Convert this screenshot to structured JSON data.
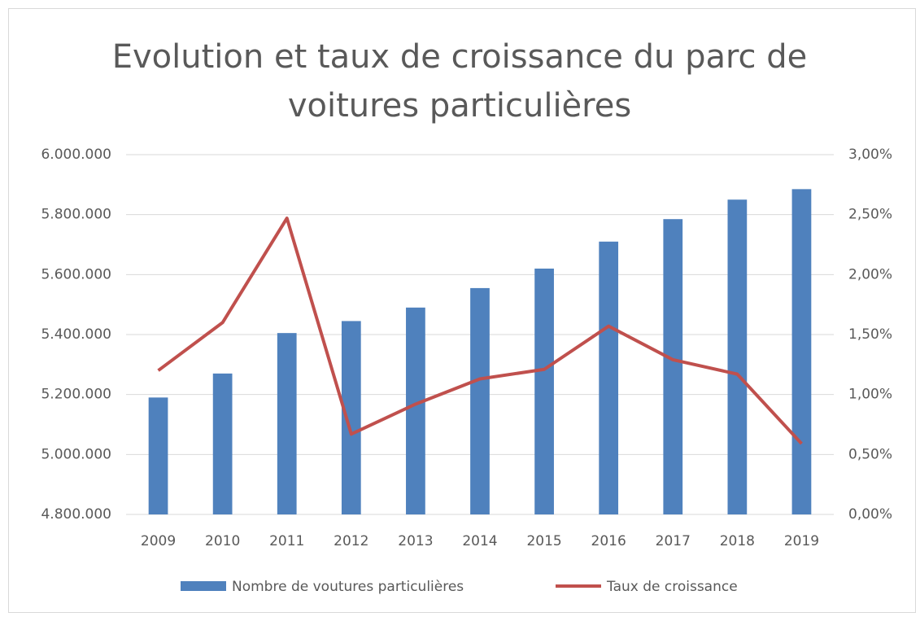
{
  "chart_data": {
    "type": "combo",
    "title": "Evolution et taux de croissance du parc de voitures particulières",
    "categories": [
      "2009",
      "2010",
      "2011",
      "2012",
      "2013",
      "2014",
      "2015",
      "2016",
      "2017",
      "2018",
      "2019"
    ],
    "series": [
      {
        "name": "Nombre de voutures particulières",
        "type": "bar",
        "color": "#4f81bd",
        "values": [
          5190000,
          5270000,
          5405000,
          5445000,
          5490000,
          5555000,
          5620000,
          5710000,
          5785000,
          5850000,
          5885000
        ]
      },
      {
        "name": "Taux de croissance",
        "type": "line",
        "axis": "y2",
        "color": "#c0504d",
        "values": [
          1.2,
          1.6,
          2.47,
          0.67,
          0.92,
          1.13,
          1.21,
          1.57,
          1.29,
          1.17,
          0.59
        ]
      }
    ],
    "ylim": [
      4800000,
      6000000
    ],
    "yticks": [
      {
        "value": 4800000,
        "label": "4.800.000"
      },
      {
        "value": 5000000,
        "label": "5.000.000"
      },
      {
        "value": 5200000,
        "label": "5.200.000"
      },
      {
        "value": 5400000,
        "label": "5.400.000"
      },
      {
        "value": 5600000,
        "label": "5.600.000"
      },
      {
        "value": 5800000,
        "label": "5.800.000"
      },
      {
        "value": 6000000,
        "label": "6.000.000"
      }
    ],
    "y2lim": [
      0,
      3
    ],
    "y2ticks": [
      {
        "value": 0,
        "label": "0,00%"
      },
      {
        "value": 0.5,
        "label": "0,50%"
      },
      {
        "value": 1,
        "label": "1,00%"
      },
      {
        "value": 1.5,
        "label": "1,50%"
      },
      {
        "value": 2,
        "label": "2,00%"
      },
      {
        "value": 2.5,
        "label": "2,50%"
      },
      {
        "value": 3,
        "label": "3,00%"
      }
    ],
    "grid": true,
    "legend": "bottom"
  }
}
